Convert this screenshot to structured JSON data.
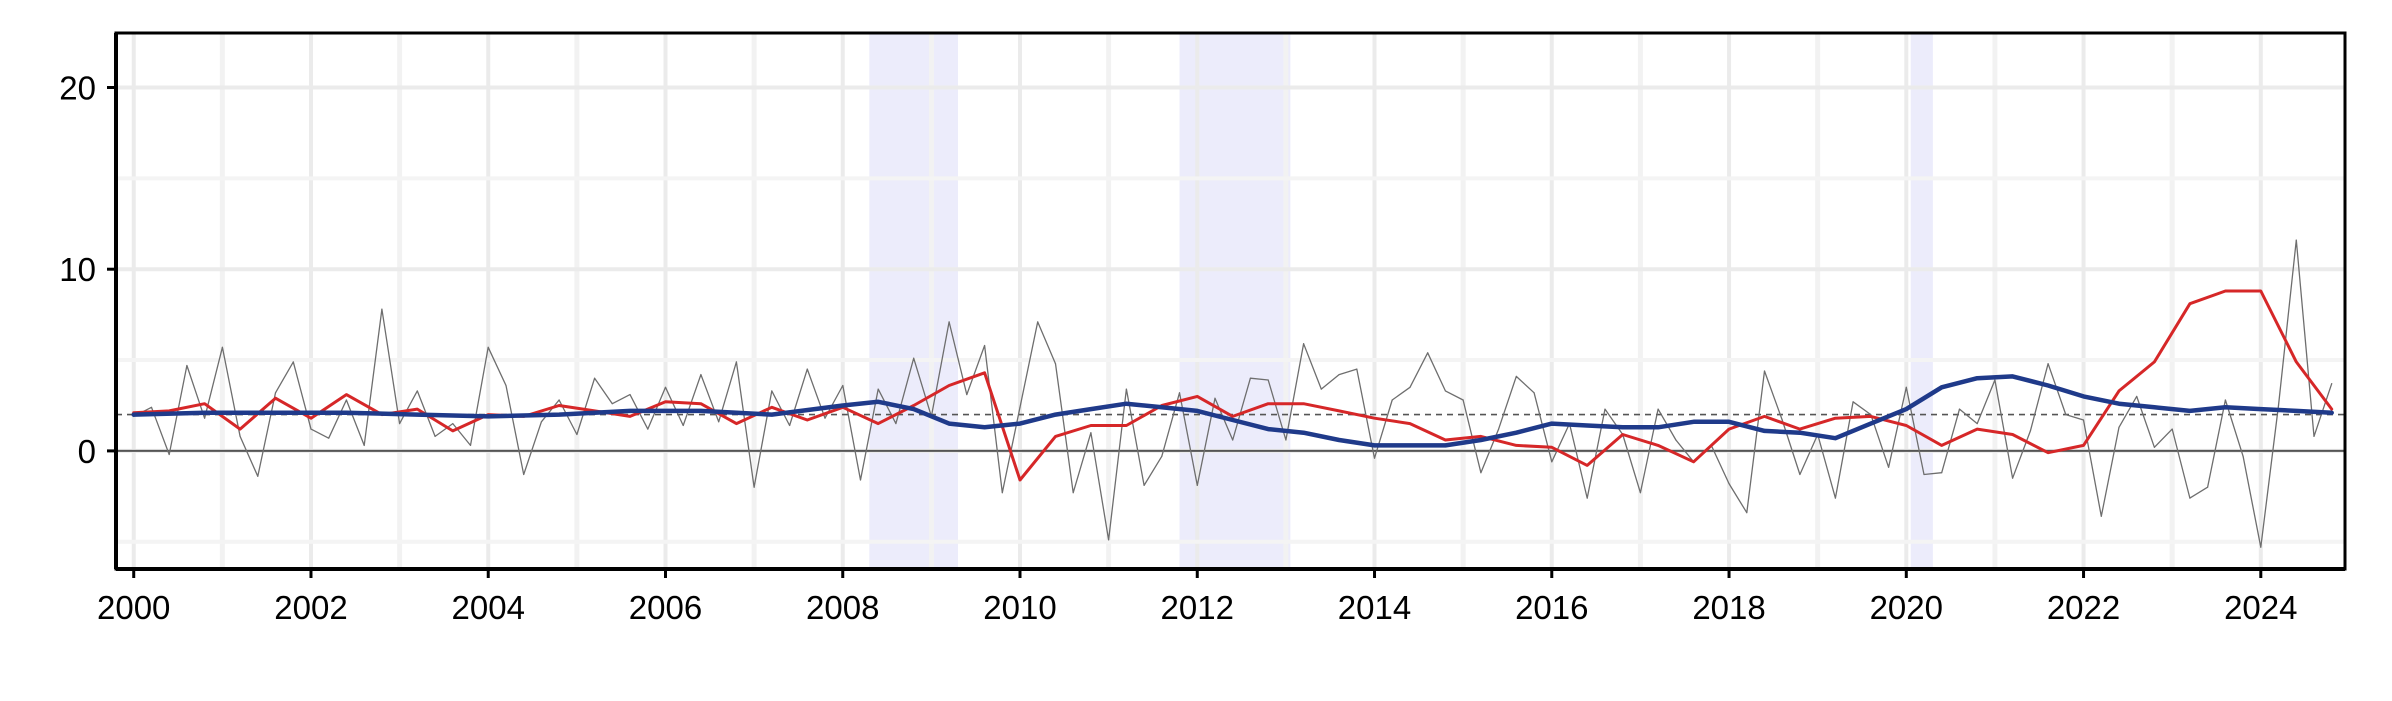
{
  "chart_data": {
    "type": "line",
    "title": "",
    "xlabel": "",
    "ylabel": "",
    "xlim": [
      1999.8,
      2024.95
    ],
    "ylim": [
      -6.5,
      23
    ],
    "x_ticks": [
      2000,
      2002,
      2004,
      2006,
      2008,
      2010,
      2012,
      2014,
      2016,
      2018,
      2020,
      2022,
      2024
    ],
    "x_tick_labels": [
      "2000",
      "2002",
      "2004",
      "2006",
      "2008",
      "2010",
      "2012",
      "2014",
      "2016",
      "2018",
      "2020",
      "2022",
      "2024"
    ],
    "y_ticks": [
      0,
      10,
      20
    ],
    "y_tick_labels": [
      "0",
      "10",
      "20"
    ],
    "grid": true,
    "legend": "none",
    "reference_lines": [
      {
        "y": 0,
        "style": "solid",
        "color": "#555555"
      },
      {
        "y": 2,
        "style": "dashed",
        "color": "#555555"
      }
    ],
    "shaded_periods": [
      {
        "start": 2008.3,
        "end": 2009.3
      },
      {
        "start": 2011.8,
        "end": 2013.05
      },
      {
        "start": 2020.05,
        "end": 2020.3
      }
    ],
    "shade_color": "#ececfb",
    "series": [
      {
        "color": "#6e6e6e",
        "width": "thin",
        "points": [
          [
            2000.0,
            1.9
          ],
          [
            2000.2,
            2.4
          ],
          [
            2000.4,
            -0.2
          ],
          [
            2000.6,
            4.7
          ],
          [
            2000.8,
            1.8
          ],
          [
            2001.0,
            5.7
          ],
          [
            2001.2,
            0.8
          ],
          [
            2001.4,
            -1.4
          ],
          [
            2001.6,
            3.2
          ],
          [
            2001.8,
            4.9
          ],
          [
            2002.0,
            1.2
          ],
          [
            2002.2,
            0.7
          ],
          [
            2002.4,
            2.8
          ],
          [
            2002.6,
            0.3
          ],
          [
            2002.8,
            7.8
          ],
          [
            2003.0,
            1.5
          ],
          [
            2003.2,
            3.3
          ],
          [
            2003.4,
            0.8
          ],
          [
            2003.6,
            1.5
          ],
          [
            2003.8,
            0.3
          ],
          [
            2004.0,
            5.7
          ],
          [
            2004.2,
            3.6
          ],
          [
            2004.4,
            -1.3
          ],
          [
            2004.6,
            1.6
          ],
          [
            2004.8,
            2.8
          ],
          [
            2005.0,
            0.9
          ],
          [
            2005.2,
            4.0
          ],
          [
            2005.4,
            2.6
          ],
          [
            2005.6,
            3.1
          ],
          [
            2005.8,
            1.2
          ],
          [
            2006.0,
            3.5
          ],
          [
            2006.2,
            1.4
          ],
          [
            2006.4,
            4.2
          ],
          [
            2006.6,
            1.6
          ],
          [
            2006.8,
            4.9
          ],
          [
            2007.0,
            -2.0
          ],
          [
            2007.2,
            3.3
          ],
          [
            2007.4,
            1.4
          ],
          [
            2007.6,
            4.5
          ],
          [
            2007.8,
            1.8
          ],
          [
            2008.0,
            3.6
          ],
          [
            2008.2,
            -1.6
          ],
          [
            2008.4,
            3.4
          ],
          [
            2008.6,
            1.5
          ],
          [
            2008.8,
            5.1
          ],
          [
            2009.0,
            1.9
          ],
          [
            2009.2,
            7.1
          ],
          [
            2009.4,
            3.1
          ],
          [
            2009.6,
            5.8
          ],
          [
            2009.8,
            -2.3
          ],
          [
            2010.0,
            2.4
          ],
          [
            2010.2,
            7.1
          ],
          [
            2010.4,
            4.8
          ],
          [
            2010.6,
            -2.3
          ],
          [
            2010.8,
            1.0
          ],
          [
            2011.0,
            -4.9
          ],
          [
            2011.2,
            3.4
          ],
          [
            2011.4,
            -1.9
          ],
          [
            2011.6,
            -0.3
          ],
          [
            2011.8,
            3.2
          ],
          [
            2012.0,
            -1.9
          ],
          [
            2012.2,
            2.9
          ],
          [
            2012.4,
            0.6
          ],
          [
            2012.6,
            4.0
          ],
          [
            2012.8,
            3.9
          ],
          [
            2013.0,
            0.6
          ],
          [
            2013.2,
            5.9
          ],
          [
            2013.4,
            3.4
          ],
          [
            2013.6,
            4.2
          ],
          [
            2013.8,
            4.5
          ],
          [
            2014.0,
            -0.4
          ],
          [
            2014.2,
            2.8
          ],
          [
            2014.4,
            3.5
          ],
          [
            2014.6,
            5.4
          ],
          [
            2014.8,
            3.3
          ],
          [
            2015.0,
            2.8
          ],
          [
            2015.2,
            -1.2
          ],
          [
            2015.4,
            1.2
          ],
          [
            2015.6,
            4.1
          ],
          [
            2015.8,
            3.2
          ],
          [
            2016.0,
            -0.6
          ],
          [
            2016.2,
            1.5
          ],
          [
            2016.4,
            -2.6
          ],
          [
            2016.6,
            2.3
          ],
          [
            2016.8,
            0.9
          ],
          [
            2017.0,
            -2.3
          ],
          [
            2017.2,
            2.3
          ],
          [
            2017.4,
            0.6
          ],
          [
            2017.6,
            -0.6
          ],
          [
            2017.8,
            0.3
          ],
          [
            2018.0,
            -1.8
          ],
          [
            2018.2,
            -3.4
          ],
          [
            2018.4,
            4.4
          ],
          [
            2018.6,
            1.7
          ],
          [
            2018.8,
            -1.3
          ],
          [
            2019.0,
            0.9
          ],
          [
            2019.2,
            -2.6
          ],
          [
            2019.4,
            2.7
          ],
          [
            2019.6,
            2.0
          ],
          [
            2019.8,
            -0.9
          ],
          [
            2020.0,
            3.5
          ],
          [
            2020.2,
            -1.3
          ],
          [
            2020.4,
            -1.2
          ],
          [
            2020.6,
            2.3
          ],
          [
            2020.8,
            1.5
          ],
          [
            2021.0,
            3.9
          ],
          [
            2021.2,
            -1.5
          ],
          [
            2021.4,
            1.1
          ],
          [
            2021.6,
            4.8
          ],
          [
            2021.8,
            2.0
          ],
          [
            2022.0,
            1.7
          ],
          [
            2022.2,
            -3.6
          ],
          [
            2022.4,
            1.3
          ],
          [
            2022.6,
            3.0
          ],
          [
            2022.8,
            0.2
          ],
          [
            2023.0,
            1.2
          ],
          [
            2023.2,
            -2.6
          ],
          [
            2023.4,
            -2.0
          ],
          [
            2023.6,
            2.8
          ],
          [
            2023.8,
            -0.3
          ],
          [
            2024.0,
            -5.3
          ],
          [
            2024.2,
            2.5
          ],
          [
            2024.4,
            11.6
          ],
          [
            2024.6,
            0.8
          ],
          [
            2024.8,
            3.7
          ]
        ]
      },
      {
        "color": "#d62728",
        "width": "medium",
        "points": [
          [
            2000.0,
            2.1
          ],
          [
            2000.4,
            2.2
          ],
          [
            2000.8,
            2.6
          ],
          [
            2001.2,
            1.2
          ],
          [
            2001.6,
            2.9
          ],
          [
            2002.0,
            1.8
          ],
          [
            2002.4,
            3.1
          ],
          [
            2002.8,
            2.0
          ],
          [
            2003.2,
            2.3
          ],
          [
            2003.6,
            1.1
          ],
          [
            2004.0,
            2.0
          ],
          [
            2004.4,
            1.9
          ],
          [
            2004.8,
            2.5
          ],
          [
            2005.2,
            2.2
          ],
          [
            2005.6,
            1.9
          ],
          [
            2006.0,
            2.7
          ],
          [
            2006.4,
            2.6
          ],
          [
            2006.8,
            1.5
          ],
          [
            2007.2,
            2.4
          ],
          [
            2007.6,
            1.7
          ],
          [
            2008.0,
            2.4
          ],
          [
            2008.4,
            1.5
          ],
          [
            2008.8,
            2.5
          ],
          [
            2009.2,
            3.6
          ],
          [
            2009.6,
            4.3
          ],
          [
            2010.0,
            -1.6
          ],
          [
            2010.4,
            0.8
          ],
          [
            2010.8,
            1.4
          ],
          [
            2011.2,
            1.4
          ],
          [
            2011.6,
            2.5
          ],
          [
            2012.0,
            3.0
          ],
          [
            2012.4,
            1.9
          ],
          [
            2012.8,
            2.6
          ],
          [
            2013.2,
            2.6
          ],
          [
            2013.6,
            2.2
          ],
          [
            2014.0,
            1.8
          ],
          [
            2014.4,
            1.5
          ],
          [
            2014.8,
            0.6
          ],
          [
            2015.2,
            0.8
          ],
          [
            2015.6,
            0.3
          ],
          [
            2016.0,
            0.2
          ],
          [
            2016.4,
            -0.8
          ],
          [
            2016.8,
            0.9
          ],
          [
            2017.2,
            0.3
          ],
          [
            2017.6,
            -0.6
          ],
          [
            2018.0,
            1.2
          ],
          [
            2018.4,
            1.9
          ],
          [
            2018.8,
            1.2
          ],
          [
            2019.2,
            1.8
          ],
          [
            2019.6,
            1.9
          ],
          [
            2020.0,
            1.4
          ],
          [
            2020.4,
            0.3
          ],
          [
            2020.8,
            1.2
          ],
          [
            2021.2,
            0.9
          ],
          [
            2021.6,
            -0.1
          ],
          [
            2022.0,
            0.3
          ],
          [
            2022.4,
            3.3
          ],
          [
            2022.8,
            4.9
          ],
          [
            2023.2,
            8.1
          ],
          [
            2023.6,
            8.8
          ],
          [
            2024.0,
            8.8
          ],
          [
            2024.4,
            4.9
          ],
          [
            2024.8,
            2.3
          ]
        ]
      },
      {
        "color": "#1f3a8a",
        "width": "thick",
        "points": [
          [
            2000.0,
            2.0
          ],
          [
            2000.8,
            2.1
          ],
          [
            2001.6,
            2.1
          ],
          [
            2002.4,
            2.1
          ],
          [
            2003.2,
            2.0
          ],
          [
            2004.0,
            1.9
          ],
          [
            2004.8,
            2.0
          ],
          [
            2005.6,
            2.2
          ],
          [
            2006.4,
            2.2
          ],
          [
            2007.2,
            2.0
          ],
          [
            2008.0,
            2.5
          ],
          [
            2008.4,
            2.7
          ],
          [
            2008.8,
            2.3
          ],
          [
            2009.2,
            1.5
          ],
          [
            2009.6,
            1.3
          ],
          [
            2010.0,
            1.5
          ],
          [
            2010.4,
            2.0
          ],
          [
            2010.8,
            2.3
          ],
          [
            2011.2,
            2.6
          ],
          [
            2011.6,
            2.4
          ],
          [
            2012.0,
            2.2
          ],
          [
            2012.4,
            1.7
          ],
          [
            2012.8,
            1.2
          ],
          [
            2013.2,
            1.0
          ],
          [
            2013.6,
            0.6
          ],
          [
            2014.0,
            0.3
          ],
          [
            2014.4,
            0.3
          ],
          [
            2014.8,
            0.3
          ],
          [
            2015.2,
            0.6
          ],
          [
            2015.6,
            1.0
          ],
          [
            2016.0,
            1.5
          ],
          [
            2016.4,
            1.4
          ],
          [
            2016.8,
            1.3
          ],
          [
            2017.2,
            1.3
          ],
          [
            2017.6,
            1.6
          ],
          [
            2018.0,
            1.6
          ],
          [
            2018.4,
            1.1
          ],
          [
            2018.8,
            1.0
          ],
          [
            2019.2,
            0.7
          ],
          [
            2019.6,
            1.5
          ],
          [
            2020.0,
            2.3
          ],
          [
            2020.4,
            3.5
          ],
          [
            2020.8,
            4.0
          ],
          [
            2021.2,
            4.1
          ],
          [
            2021.6,
            3.6
          ],
          [
            2022.0,
            3.0
          ],
          [
            2022.4,
            2.6
          ],
          [
            2022.8,
            2.4
          ],
          [
            2023.2,
            2.2
          ],
          [
            2023.6,
            2.4
          ],
          [
            2024.0,
            2.3
          ],
          [
            2024.4,
            2.2
          ],
          [
            2024.8,
            2.1
          ]
        ]
      }
    ]
  }
}
